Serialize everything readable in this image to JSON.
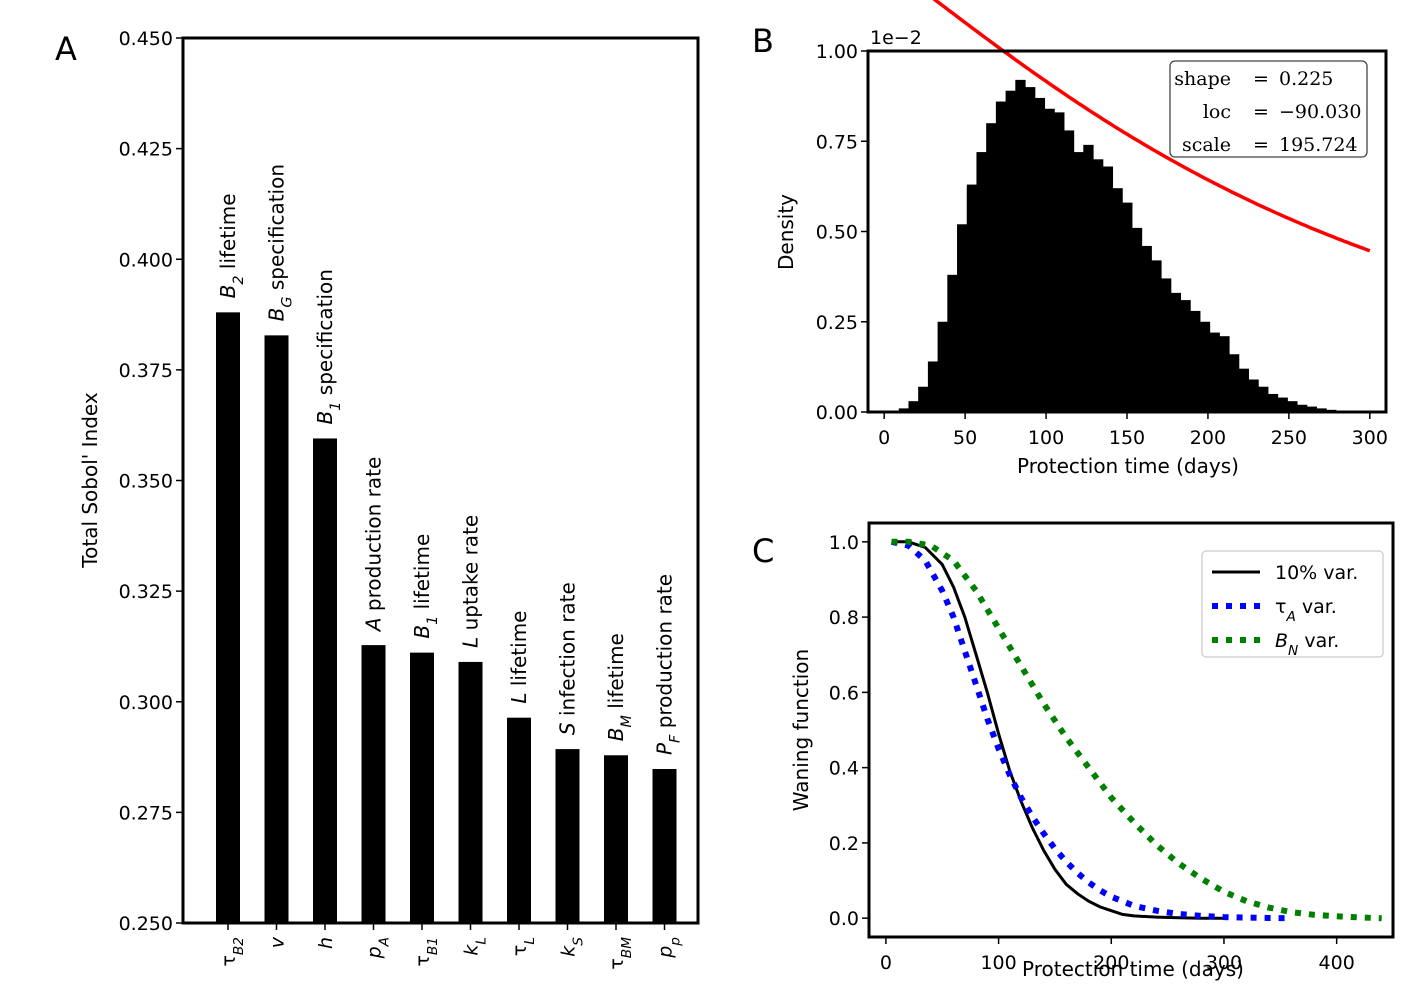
{
  "panel_labels": {
    "a": "A",
    "b": "B",
    "c": "C"
  },
  "chart_data": [
    {
      "type": "bar",
      "panel": "A",
      "ylabel": "Total Sobol' Index",
      "xlabel": "",
      "ylim": [
        0.25,
        0.45
      ],
      "yticks": [
        "0.250",
        "0.275",
        "0.300",
        "0.325",
        "0.350",
        "0.375",
        "0.400",
        "0.425",
        "0.450"
      ],
      "ytick_values": [
        0.25,
        0.275,
        0.3,
        0.325,
        0.35,
        0.375,
        0.4,
        0.425,
        0.45
      ],
      "categories": [
        {
          "sym": "τ",
          "sub": "B2",
          "italic": false
        },
        {
          "sym": "v",
          "sub": "",
          "italic": true
        },
        {
          "sym": "h",
          "sub": "",
          "italic": true
        },
        {
          "sym": "p",
          "sub": "A",
          "italic": true
        },
        {
          "sym": "τ",
          "sub": "B1",
          "italic": false
        },
        {
          "sym": "k",
          "sub": "L",
          "italic": true
        },
        {
          "sym": "τ",
          "sub": "L",
          "italic": false
        },
        {
          "sym": "k",
          "sub": "S",
          "italic": true
        },
        {
          "sym": "τ",
          "sub": "BM",
          "italic": false
        },
        {
          "sym": "p",
          "sub": "p",
          "italic": true
        }
      ],
      "values": [
        0.388,
        0.3828,
        0.3595,
        0.3128,
        0.3111,
        0.309,
        0.2964,
        0.2893,
        0.2879,
        0.2848
      ],
      "bar_labels": [
        {
          "sym": "B",
          "sub": "2",
          "text": " lifetime"
        },
        {
          "sym": "B",
          "sub": "G",
          "text": " specification"
        },
        {
          "sym": "B",
          "sub": "1",
          "text": " specification"
        },
        {
          "sym": "A",
          "sub": "",
          "text": " production rate"
        },
        {
          "sym": "B",
          "sub": "1",
          "text": " lifetime"
        },
        {
          "sym": "L",
          "sub": "",
          "text": " uptake rate"
        },
        {
          "sym": "L",
          "sub": "",
          "text": " lifetime"
        },
        {
          "sym": "S",
          "sub": "",
          "text": " infection rate"
        },
        {
          "sym": "B",
          "sub": "M",
          "text": " lifetime"
        },
        {
          "sym": "P",
          "sub": "F",
          "text": " production rate"
        }
      ],
      "grid": false
    },
    {
      "type": "bar",
      "subtype": "histogram-with-fit",
      "panel": "B",
      "xlabel": "Protection time (days)",
      "ylabel": "Density",
      "offset_text": "1e−2",
      "xlim": [
        -10,
        310
      ],
      "ylim": [
        0,
        1.0
      ],
      "xticks": [
        "0",
        "50",
        "100",
        "150",
        "200",
        "250",
        "300"
      ],
      "xtick_values": [
        0,
        50,
        100,
        150,
        200,
        250,
        300
      ],
      "yticks": [
        "0.00",
        "0.25",
        "0.50",
        "0.75",
        "1.00"
      ],
      "ytick_values": [
        0,
        0.25,
        0.5,
        0.75,
        1.0
      ],
      "histogram": {
        "color": "#000000",
        "bin_centers": [
          12,
          18,
          24,
          30,
          36,
          42,
          48,
          54,
          60,
          66,
          72,
          78,
          84,
          90,
          96,
          102,
          108,
          114,
          120,
          126,
          132,
          138,
          144,
          150,
          156,
          162,
          168,
          174,
          180,
          186,
          192,
          198,
          204,
          210,
          216,
          222,
          228,
          234,
          240,
          246,
          252,
          258,
          264,
          270,
          276,
          282
        ],
        "density": [
          0.01,
          0.03,
          0.07,
          0.14,
          0.25,
          0.38,
          0.52,
          0.63,
          0.72,
          0.8,
          0.86,
          0.89,
          0.92,
          0.9,
          0.87,
          0.84,
          0.83,
          0.78,
          0.72,
          0.74,
          0.7,
          0.68,
          0.62,
          0.58,
          0.51,
          0.46,
          0.42,
          0.37,
          0.33,
          0.31,
          0.28,
          0.25,
          0.22,
          0.21,
          0.16,
          0.12,
          0.09,
          0.07,
          0.05,
          0.04,
          0.03,
          0.02,
          0.015,
          0.01,
          0.006,
          0.003
        ]
      },
      "fit": {
        "color": "#ff0000",
        "shape": 0.225,
        "loc": -90.03,
        "scale": 195.724
      },
      "legend_box": {
        "rows": [
          {
            "name": "shape",
            "eq": "=",
            "value": "0.225"
          },
          {
            "name": "loc",
            "eq": "=",
            "value": "−90.030"
          },
          {
            "name": "scale",
            "eq": "=",
            "value": "195.724"
          }
        ],
        "placement": "top-right"
      },
      "grid": false
    },
    {
      "type": "line",
      "panel": "C",
      "xlabel": "Protection time (days)",
      "ylabel": "Waning function",
      "xlim": [
        -15,
        450
      ],
      "ylim": [
        -0.05,
        1.05
      ],
      "xticks": [
        "0",
        "100",
        "200",
        "300",
        "400"
      ],
      "xtick_values": [
        0,
        100,
        200,
        300,
        400
      ],
      "yticks": [
        "0.0",
        "0.2",
        "0.4",
        "0.6",
        "0.8",
        "1.0"
      ],
      "ytick_values": [
        0,
        0.2,
        0.4,
        0.6,
        0.8,
        1.0
      ],
      "legend_placement": "top-right",
      "series": [
        {
          "name_sym": "",
          "name_sub": "",
          "name_text": "10% var.",
          "color": "#000000",
          "style": "solid",
          "x": [
            5,
            20,
            35,
            50,
            60,
            70,
            80,
            90,
            100,
            110,
            120,
            130,
            140,
            150,
            160,
            170,
            180,
            190,
            200,
            210,
            220,
            240,
            260,
            280,
            300
          ],
          "y": [
            1.0,
            1.0,
            0.985,
            0.94,
            0.88,
            0.8,
            0.7,
            0.6,
            0.49,
            0.39,
            0.31,
            0.24,
            0.18,
            0.13,
            0.09,
            0.065,
            0.045,
            0.03,
            0.02,
            0.01,
            0.006,
            0.003,
            0.001,
            0.0,
            0.0
          ]
        },
        {
          "name_sym": "τ",
          "name_sub": "A",
          "name_text": " var.",
          "color": "#0000ff",
          "style": "dotted",
          "x": [
            5,
            20,
            35,
            50,
            60,
            70,
            80,
            90,
            100,
            110,
            120,
            130,
            140,
            150,
            160,
            170,
            180,
            190,
            200,
            220,
            240,
            260,
            280,
            300,
            320,
            340,
            360
          ],
          "y": [
            1.0,
            0.99,
            0.95,
            0.87,
            0.8,
            0.71,
            0.62,
            0.53,
            0.45,
            0.38,
            0.32,
            0.27,
            0.225,
            0.185,
            0.15,
            0.12,
            0.095,
            0.074,
            0.057,
            0.033,
            0.02,
            0.011,
            0.006,
            0.003,
            0.0015,
            0.0006,
            0.0
          ]
        },
        {
          "name_sym": "B",
          "name_sub": "N",
          "name_text": " var.",
          "color": "#008000",
          "style": "dotted",
          "x": [
            5,
            20,
            40,
            60,
            80,
            100,
            120,
            140,
            160,
            180,
            200,
            220,
            240,
            260,
            280,
            300,
            320,
            340,
            360,
            380,
            400,
            420,
            440
          ],
          "y": [
            1.0,
            1.0,
            0.99,
            0.95,
            0.87,
            0.77,
            0.67,
            0.57,
            0.48,
            0.4,
            0.32,
            0.255,
            0.195,
            0.145,
            0.105,
            0.07,
            0.045,
            0.028,
            0.016,
            0.009,
            0.005,
            0.002,
            0.0
          ]
        }
      ],
      "grid": false
    }
  ]
}
